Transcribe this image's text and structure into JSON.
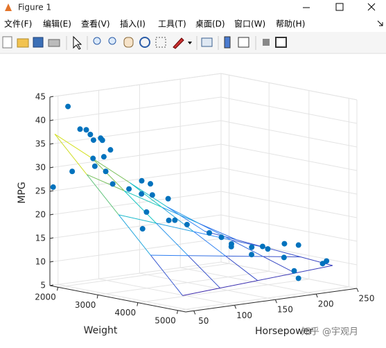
{
  "window": {
    "title": "Figure 1",
    "menu": [
      "文件(F)",
      "编辑(E)",
      "查看(V)",
      "插入(I)",
      "工具(T)",
      "桌面(D)",
      "窗口(W)",
      "帮助(H)"
    ]
  },
  "chart_data": {
    "type": "scatter3d",
    "xlabel": "Weight",
    "ylabel": "Horsepower",
    "zlabel": "MPG",
    "xlim": [
      1800,
      5200
    ],
    "ylim": [
      40,
      250
    ],
    "zlim": [
      5,
      45
    ],
    "xticks": [
      2000,
      3000,
      4000,
      5000
    ],
    "yticks": [
      50,
      100,
      150,
      200,
      250
    ],
    "zticks": [
      5,
      10,
      15,
      20,
      25,
      30,
      35,
      40,
      45
    ],
    "grid": true,
    "series": [
      {
        "color": "#0072bd",
        "x": [
          1800,
          2130,
          2045,
          2160,
          2200,
          2300,
          2050,
          2400,
          2500,
          2600,
          1900,
          1950,
          2150,
          2300,
          2250,
          2670,
          2800,
          2950,
          2990,
          3140,
          3230,
          3300,
          3450,
          3500,
          3100,
          3600,
          3750,
          3850,
          4100,
          4300,
          4200,
          4400,
          4500,
          3900,
          4600,
          4100,
          4350,
          4950,
          4750,
          4650,
          4900
        ],
        "y": [
          44,
          46,
          65,
          67,
          70,
          69,
          90,
          75,
          80,
          67,
          88,
          60,
          78,
          84,
          95,
          110,
          88,
          96,
          105,
          100,
          115,
          85,
          105,
          110,
          90,
          120,
          140,
          150,
          150,
          140,
          170,
          160,
          175,
          198,
          190,
          215,
          220,
          225,
          230,
          200,
          193
        ],
        "z": [
          25.8,
          43.4,
          38,
          38,
          37,
          36,
          35.5,
          36,
          34,
          33,
          31,
          29,
          30,
          29,
          26,
          27,
          26,
          25,
          27,
          25,
          24,
          22,
          20,
          20,
          18,
          19,
          17,
          16,
          15,
          15,
          14,
          13,
          14,
          13,
          12,
          13.5,
          13.5,
          11,
          10,
          9,
          8
        ]
      }
    ],
    "surface": {
      "x": [
        1800,
        2600,
        3400,
        4200,
        5000
      ],
      "y": [
        46,
        92,
        138,
        184,
        230
      ],
      "z": [
        [
          37,
          30.75,
          24.5,
          18.25,
          12
        ],
        [
          29.75,
          25.19,
          20.63,
          16.06,
          11.5
        ],
        [
          22.5,
          19.63,
          16.75,
          13.88,
          11
        ],
        [
          15.25,
          14.06,
          12.88,
          11.69,
          10.5
        ],
        [
          8,
          8.5,
          9,
          9.5,
          10
        ]
      ],
      "colormap": [
        "#3e26a8",
        "#2e87f7",
        "#1ac7c2",
        "#a5be34",
        "#f9fb15"
      ]
    }
  },
  "watermark": "知乎 @宇观月"
}
